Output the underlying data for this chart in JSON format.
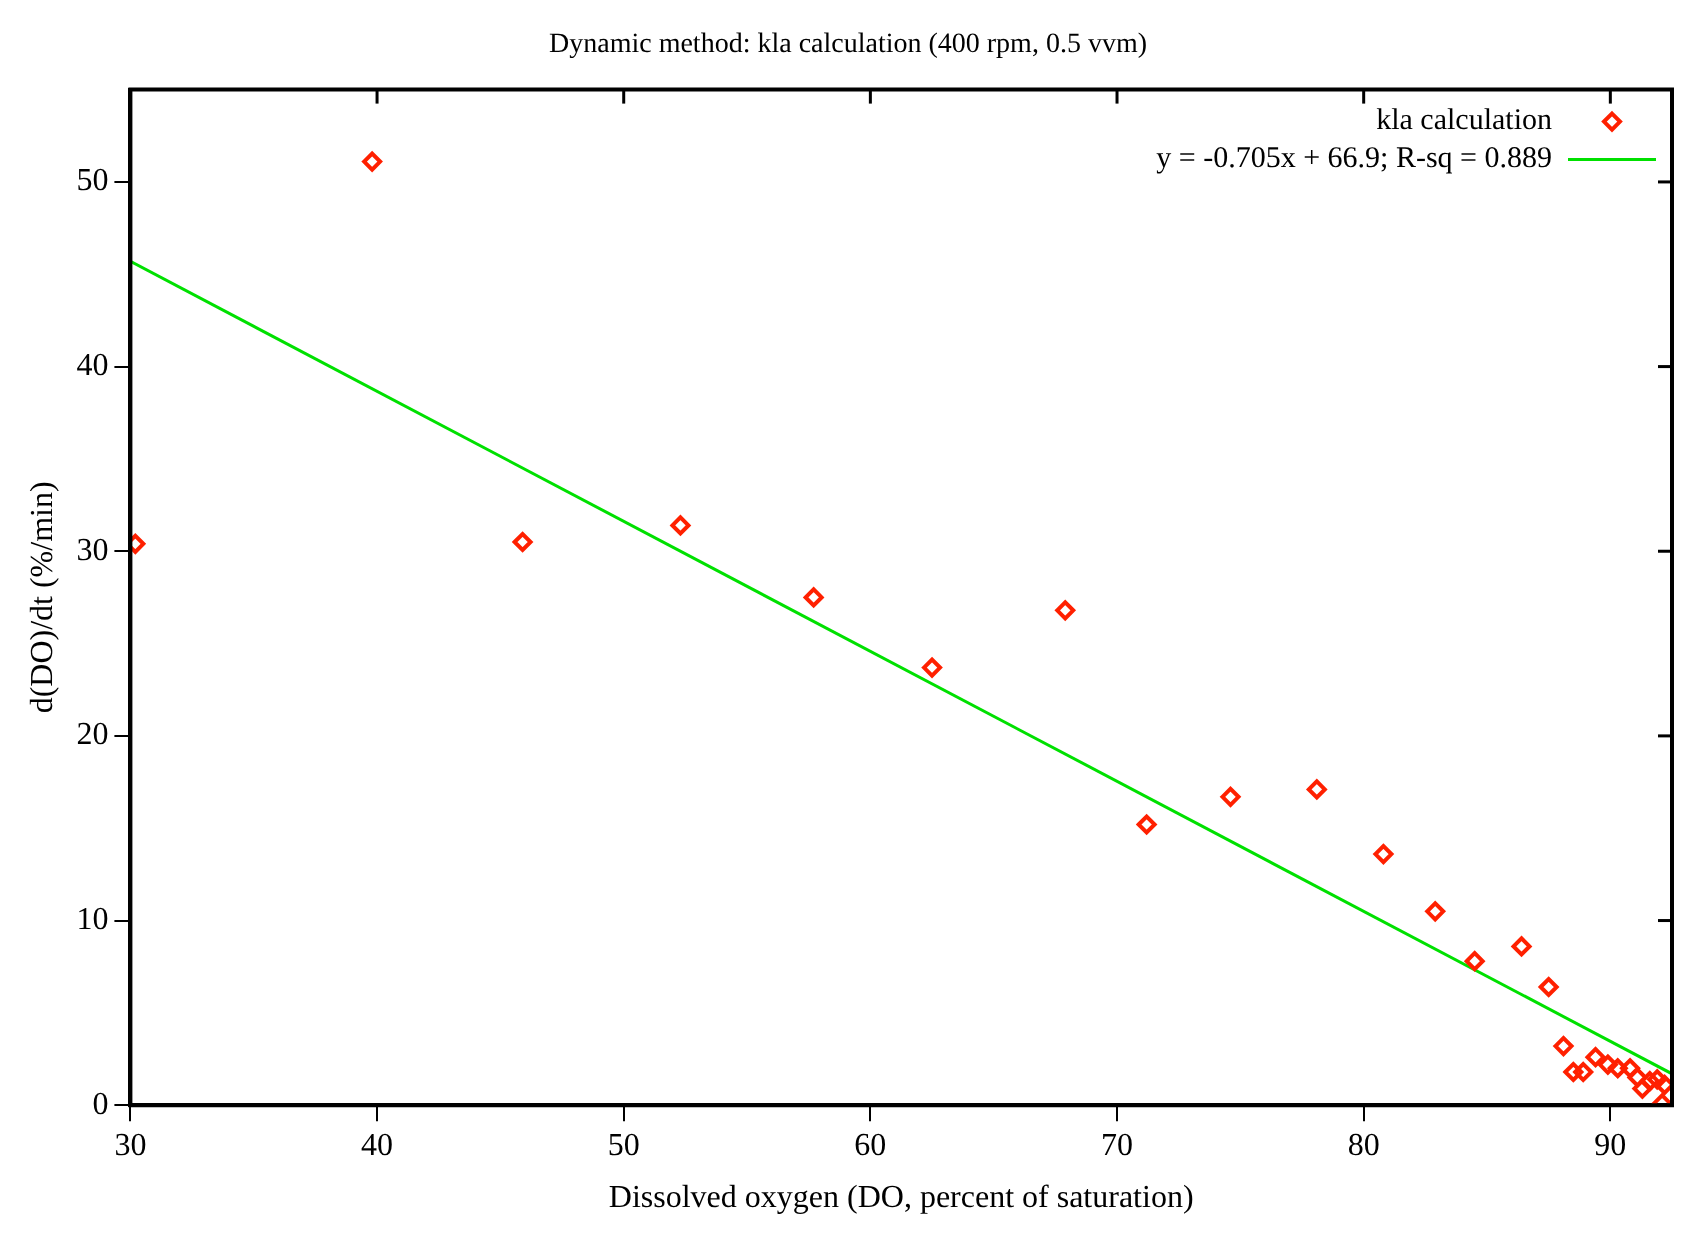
{
  "chart_data": {
    "type": "scatter",
    "title": "Dynamic method: kla calculation (400 rpm, 0.5 vvm)",
    "xlabel": "Dissolved oxygen (DO, percent of saturation)",
    "ylabel": "d(DO)/dt (%/min)",
    "xlim": [
      30,
      92.5
    ],
    "xticks": [
      30,
      40,
      50,
      60,
      70,
      80,
      90
    ],
    "ylim": [
      0,
      55
    ],
    "yticks": [
      0,
      10,
      20,
      30,
      40,
      50
    ],
    "grid": false,
    "legend": "top right",
    "marker": "diamond",
    "series": [
      {
        "name": "kla calculation",
        "color": "#ff2000",
        "x": [
          30.2,
          39.8,
          45.9,
          52.3,
          57.7,
          62.5,
          67.9,
          71.2,
          74.6,
          78.1,
          80.8,
          82.9,
          84.5,
          86.4,
          87.5,
          88.1,
          88.5,
          88.9,
          89.4,
          89.9,
          90.3,
          90.8,
          91.1,
          91.3,
          91.6,
          91.9,
          92.2,
          92.1
        ],
        "values": [
          30.4,
          51.1,
          30.5,
          31.4,
          27.5,
          23.7,
          26.8,
          15.2,
          16.7,
          17.1,
          13.6,
          10.5,
          7.8,
          8.6,
          6.4,
          3.2,
          1.8,
          1.8,
          2.6,
          2.2,
          2.0,
          2.0,
          1.5,
          0.9,
          1.3,
          1.4,
          1.1,
          0.1
        ]
      },
      {
        "name": "y = -0.705x + 66.9; R-sq = 0.889",
        "type": "line",
        "marker": "none",
        "color": "#00e000",
        "x": [
          30,
          92.5
        ],
        "values": [
          45.7,
          1.7
        ]
      }
    ]
  }
}
